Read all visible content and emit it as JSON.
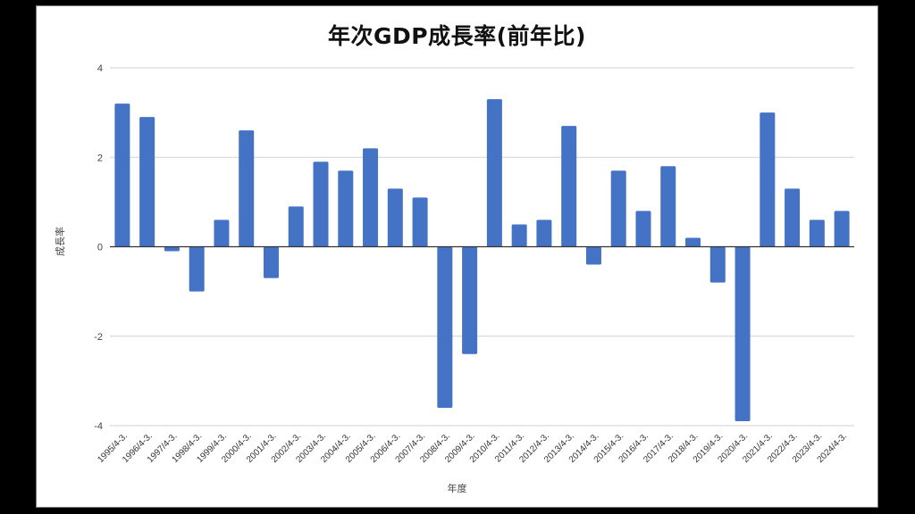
{
  "chart_data": {
    "type": "bar",
    "title": "年次GDP成長率(前年比)",
    "xlabel": "年度",
    "ylabel": "成長率",
    "ylim": [
      -4,
      4
    ],
    "yticks": [
      4,
      2,
      0,
      -2,
      -4
    ],
    "grid": true,
    "legend": null,
    "bar_color": "#4472c4",
    "categories": [
      "1995/4-3.",
      "1996/4-3.",
      "1997/4-3.",
      "1998/4-3.",
      "1999/4-3.",
      "2000/4-3.",
      "2001/4-3.",
      "2002/4-3.",
      "2003/4-3.",
      "2004/4-3.",
      "2005/4-3.",
      "2006/4-3.",
      "2007/4-3.",
      "2008/4-3.",
      "2009/4-3.",
      "2010/4-3.",
      "2011/4-3.",
      "2012/4-3.",
      "2013/4-3.",
      "2014/4-3.",
      "2015/4-3.",
      "2016/4-3.",
      "2017/4-3.",
      "2018/4-3.",
      "2019/4-3.",
      "2020/4-3.",
      "2021/4-3.",
      "2022/4-3.",
      "2023/4-3.",
      "2024/4-3."
    ],
    "values": [
      3.2,
      2.9,
      -0.1,
      -1.0,
      0.6,
      2.6,
      -0.7,
      0.9,
      1.9,
      1.7,
      2.2,
      1.3,
      1.1,
      -3.6,
      -2.4,
      3.3,
      0.5,
      0.6,
      2.7,
      -0.4,
      1.7,
      0.8,
      1.8,
      0.2,
      -0.8,
      -3.9,
      3.0,
      1.3,
      0.6,
      0.8
    ]
  }
}
